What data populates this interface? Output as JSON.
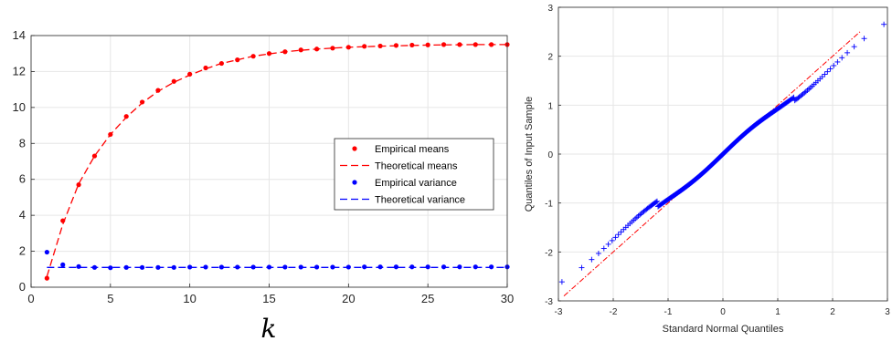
{
  "chart_data": [
    {
      "type": "line",
      "xlabel": "k",
      "ylabel": "",
      "xlim": [
        0,
        30
      ],
      "ylim": [
        0,
        14
      ],
      "xticks": [
        0,
        5,
        10,
        15,
        20,
        25,
        30
      ],
      "yticks": [
        0,
        2,
        4,
        6,
        8,
        10,
        12,
        14
      ],
      "grid": true,
      "legend_position": "center-right",
      "x": [
        1,
        2,
        3,
        4,
        5,
        6,
        7,
        8,
        9,
        10,
        11,
        12,
        13,
        14,
        15,
        16,
        17,
        18,
        19,
        20,
        21,
        22,
        23,
        24,
        25,
        26,
        27,
        28,
        29,
        30
      ],
      "series": [
        {
          "name": "Empirical means",
          "style": "dots",
          "color": "#ff0000",
          "values": [
            0.5,
            3.7,
            5.7,
            7.3,
            8.5,
            9.5,
            10.3,
            10.95,
            11.45,
            11.85,
            12.2,
            12.45,
            12.65,
            12.85,
            13.0,
            13.1,
            13.2,
            13.25,
            13.3,
            13.35,
            13.4,
            13.42,
            13.45,
            13.47,
            13.48,
            13.5,
            13.5,
            13.5,
            13.5,
            13.5
          ]
        },
        {
          "name": "Theoretical means",
          "style": "dashed",
          "color": "#ff0000",
          "values": [
            0.6,
            3.5,
            5.75,
            7.3,
            8.5,
            9.45,
            10.25,
            10.9,
            11.4,
            11.8,
            12.15,
            12.45,
            12.65,
            12.85,
            12.98,
            13.1,
            13.18,
            13.25,
            13.3,
            13.35,
            13.38,
            13.41,
            13.43,
            13.45,
            13.47,
            13.48,
            13.49,
            13.5,
            13.5,
            13.5
          ]
        },
        {
          "name": "Empirical variance",
          "style": "dots",
          "color": "#0000ff",
          "values": [
            1.95,
            1.25,
            1.15,
            1.1,
            1.08,
            1.1,
            1.1,
            1.1,
            1.1,
            1.12,
            1.12,
            1.12,
            1.12,
            1.12,
            1.12,
            1.12,
            1.12,
            1.12,
            1.12,
            1.12,
            1.13,
            1.13,
            1.13,
            1.13,
            1.13,
            1.13,
            1.13,
            1.13,
            1.13,
            1.13
          ]
        },
        {
          "name": "Theoretical variance",
          "style": "dashed",
          "color": "#0000ff",
          "values": [
            1.1,
            1.1,
            1.1,
            1.1,
            1.1,
            1.1,
            1.1,
            1.1,
            1.1,
            1.1,
            1.1,
            1.1,
            1.1,
            1.1,
            1.1,
            1.1,
            1.1,
            1.1,
            1.1,
            1.1,
            1.1,
            1.1,
            1.1,
            1.1,
            1.1,
            1.1,
            1.1,
            1.1,
            1.1,
            1.1
          ]
        }
      ]
    },
    {
      "type": "scatter",
      "xlabel": "Standard Normal Quantiles",
      "ylabel": "Quantiles of Input Sample",
      "xlim": [
        -3,
        3
      ],
      "ylim": [
        -3,
        3
      ],
      "xticks": [
        -3,
        -2,
        -1,
        0,
        1,
        2,
        3
      ],
      "yticks": [
        -3,
        -2,
        -1,
        0,
        1,
        2,
        3
      ],
      "grid": true,
      "marker": "+",
      "marker_color": "#0000ff",
      "reference_line": {
        "style": "dash-dot",
        "color": "#ff0000",
        "slope": 1.0,
        "intercept": 0.0
      },
      "sample_size": 300
    }
  ]
}
